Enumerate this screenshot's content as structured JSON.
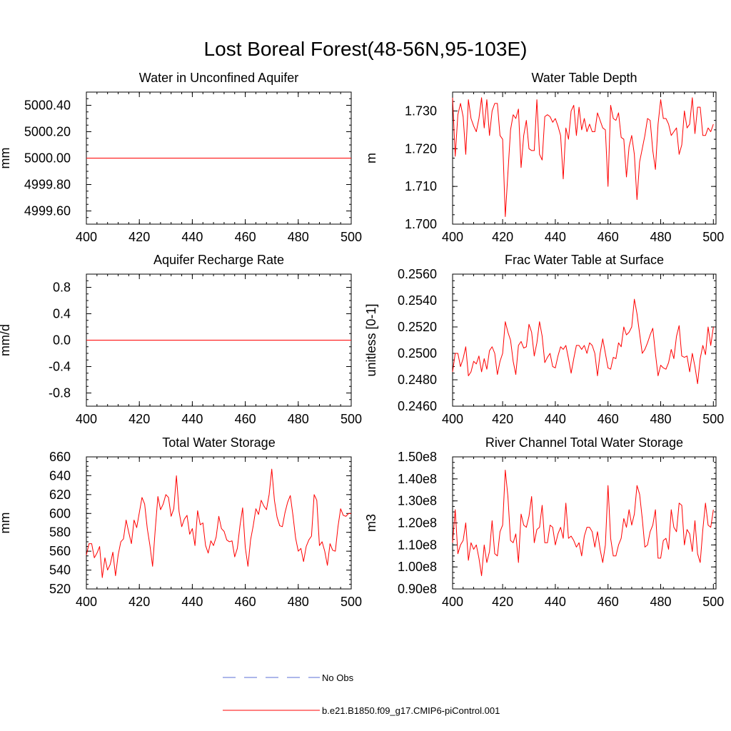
{
  "page_title": "Lost Boreal Forest(48-56N,95-103E)",
  "colors": {
    "series": "#ff0000",
    "obs": "#5b6fd6",
    "axis": "#000000"
  },
  "chart_data": [
    {
      "type": "line",
      "title": "Water in Unconfined Aquifer",
      "xlabel": "",
      "ylabel": "mm",
      "xlim": [
        400,
        500
      ],
      "ylim": [
        4999.5,
        5000.5
      ],
      "xticks": [
        400,
        420,
        440,
        460,
        480,
        500
      ],
      "yticks": [
        4999.6,
        4999.8,
        5000.0,
        5000.2,
        5000.4
      ],
      "ytick_labels": [
        "4999.60",
        "4999.80",
        "5000.00",
        "5000.20",
        "5000.40"
      ],
      "series": [
        {
          "name": "b.e21.B1850.f09_g17.CMIP6-piControl.001",
          "constant": 5000.0
        }
      ]
    },
    {
      "type": "line",
      "title": "Water Table Depth",
      "xlabel": "",
      "ylabel": "m",
      "xlim": [
        401,
        501
      ],
      "ylim": [
        1.7,
        1.735
      ],
      "xticks": [
        400,
        420,
        440,
        460,
        480,
        500
      ],
      "yticks": [
        1.7,
        1.71,
        1.72,
        1.73
      ],
      "ytick_labels": [
        "1.700",
        "1.710",
        "1.720",
        "1.730"
      ],
      "series": [
        {
          "name": "b.e21.B1850.f09_g17.CMIP6-piControl.001",
          "values": [
            1.7335,
            1.718,
            1.729,
            1.732,
            1.7285,
            1.7185,
            1.733,
            1.728,
            1.726,
            1.7245,
            1.728,
            1.7335,
            1.7255,
            1.733,
            1.7235,
            1.73,
            1.732,
            1.732,
            1.7235,
            1.7225,
            1.702,
            1.7135,
            1.725,
            1.729,
            1.728,
            1.7305,
            1.715,
            1.7235,
            1.7275,
            1.72,
            1.7195,
            1.7195,
            1.733,
            1.7185,
            1.717,
            1.7285,
            1.729,
            1.7285,
            1.727,
            1.728,
            1.726,
            1.7235,
            1.712,
            1.7255,
            1.7225,
            1.73,
            1.7315,
            1.7235,
            1.731,
            1.725,
            1.728,
            1.7245,
            1.7265,
            1.7245,
            1.7245,
            1.7295,
            1.7275,
            1.7255,
            1.725,
            1.71,
            1.7315,
            1.728,
            1.7275,
            1.7295,
            1.723,
            1.7225,
            1.7125,
            1.7205,
            1.7235,
            1.7185,
            1.7065,
            1.7165,
            1.72,
            1.7235,
            1.728,
            1.7275,
            1.7195,
            1.7145,
            1.7265,
            1.733,
            1.728,
            1.728,
            1.7265,
            1.7235,
            1.7245,
            1.7255,
            1.7185,
            1.721,
            1.73,
            1.7255,
            1.7265,
            1.7335,
            1.724,
            1.731,
            1.731,
            1.7235,
            1.7235,
            1.7255,
            1.7245,
            1.7265
          ]
        }
      ]
    },
    {
      "type": "line",
      "title": "Aquifer Recharge Rate",
      "xlabel": "",
      "ylabel": "mm/d",
      "xlim": [
        400,
        500
      ],
      "ylim": [
        -1.0,
        1.0
      ],
      "xticks": [
        400,
        420,
        440,
        460,
        480,
        500
      ],
      "yticks": [
        -0.8,
        -0.4,
        0.0,
        0.4,
        0.8
      ],
      "ytick_labels": [
        "-0.8",
        "-0.4",
        "0.0",
        "0.4",
        "0.8"
      ],
      "series": [
        {
          "name": "b.e21.B1850.f09_g17.CMIP6-piControl.001",
          "constant": 0.0
        }
      ]
    },
    {
      "type": "line",
      "title": "Frac Water Table at Surface",
      "xlabel": "",
      "ylabel": "unitless [0-1]",
      "xlim": [
        401,
        501
      ],
      "ylim": [
        0.246,
        0.256
      ],
      "xticks": [
        400,
        420,
        440,
        460,
        480,
        500
      ],
      "yticks": [
        0.246,
        0.248,
        0.25,
        0.252,
        0.254,
        0.256
      ],
      "ytick_labels": [
        "0.2460",
        "0.2480",
        "0.2500",
        "0.2520",
        "0.2540",
        "0.2560"
      ],
      "series": [
        {
          "name": "b.e21.B1850.f09_g17.CMIP6-piControl.001",
          "values": [
            0.2486,
            0.25,
            0.25,
            0.249,
            0.2496,
            0.2505,
            0.2483,
            0.2486,
            0.2494,
            0.2492,
            0.2498,
            0.2486,
            0.2496,
            0.2488,
            0.2502,
            0.2505,
            0.25,
            0.2484,
            0.2494,
            0.25,
            0.2524,
            0.2516,
            0.251,
            0.2494,
            0.2484,
            0.2506,
            0.2509,
            0.2504,
            0.2505,
            0.2522,
            0.2516,
            0.2498,
            0.2508,
            0.2524,
            0.2513,
            0.2493,
            0.2497,
            0.25,
            0.249,
            0.2489,
            0.2498,
            0.2505,
            0.2503,
            0.2506,
            0.2496,
            0.2485,
            0.2496,
            0.2506,
            0.2506,
            0.2503,
            0.2506,
            0.25,
            0.2508,
            0.2506,
            0.25,
            0.2483,
            0.25,
            0.2511,
            0.25,
            0.2489,
            0.2488,
            0.2497,
            0.2496,
            0.2508,
            0.2505,
            0.252,
            0.2514,
            0.2516,
            0.252,
            0.2541,
            0.253,
            0.2515,
            0.25,
            0.2503,
            0.2508,
            0.2514,
            0.2519,
            0.25,
            0.2483,
            0.2491,
            0.2489,
            0.2488,
            0.2493,
            0.2503,
            0.2496,
            0.2513,
            0.2521,
            0.2498,
            0.2497,
            0.2498,
            0.2486,
            0.25,
            0.249,
            0.2477,
            0.2496,
            0.2506,
            0.2499,
            0.252,
            0.2506,
            0.252
          ]
        }
      ]
    },
    {
      "type": "line",
      "title": "Total Water Storage",
      "xlabel": "",
      "ylabel": "mm",
      "xlim": [
        400,
        500
      ],
      "ylim": [
        520,
        660
      ],
      "xticks": [
        400,
        420,
        440,
        460,
        480,
        500
      ],
      "yticks": [
        520,
        540,
        560,
        580,
        600,
        620,
        640,
        660
      ],
      "ytick_labels": [
        "520",
        "540",
        "560",
        "580",
        "600",
        "620",
        "640",
        "660"
      ],
      "series": [
        {
          "name": "b.e21.B1850.f09_g17.CMIP6-piControl.001",
          "values": [
            556,
            568,
            568,
            553,
            558,
            565,
            532,
            553,
            540,
            546,
            559,
            534,
            556,
            570,
            573,
            593,
            580,
            568,
            593,
            585,
            601,
            617,
            610,
            584,
            566,
            544,
            583,
            618,
            604,
            610,
            620,
            617,
            597,
            605,
            640,
            602,
            586,
            594,
            598,
            578,
            584,
            566,
            603,
            588,
            590,
            566,
            558,
            571,
            566,
            575,
            597,
            584,
            581,
            572,
            570,
            571,
            554,
            563,
            587,
            606,
            564,
            544,
            572,
            587,
            605,
            599,
            614,
            608,
            604,
            620,
            647,
            614,
            596,
            587,
            586,
            601,
            612,
            619,
            598,
            574,
            560,
            563,
            549,
            565,
            572,
            576,
            620,
            614,
            566,
            570,
            560,
            545,
            568,
            561,
            560,
            586,
            605,
            598,
            597,
            600,
            600
          ]
        }
      ]
    },
    {
      "type": "line",
      "title": "River Channel Total Water Storage",
      "xlabel": "",
      "ylabel": "m3",
      "xlim": [
        401,
        501
      ],
      "ylim": [
        90000000,
        150000000
      ],
      "xticks": [
        400,
        420,
        440,
        460,
        480,
        500
      ],
      "yticks": [
        90000000,
        100000000,
        110000000,
        120000000,
        130000000,
        140000000,
        150000000
      ],
      "ytick_labels": [
        "0.90e8",
        "1.00e8",
        "1.10e8",
        "1.20e8",
        "1.30e8",
        "1.40e8",
        "1.50e8"
      ],
      "series": [
        {
          "name": "b.e21.B1850.f09_g17.CMIP6-piControl.001",
          "values": [
            111000000,
            126000000,
            106000000,
            110000000,
            112000000,
            120000000,
            103000000,
            111000000,
            108000000,
            110000000,
            104000000,
            96000000,
            110000000,
            102000000,
            107000000,
            121000000,
            106000000,
            105000000,
            116000000,
            119000000,
            144000000,
            132000000,
            112000000,
            111000000,
            115000000,
            102000000,
            124000000,
            119000000,
            118000000,
            123000000,
            132000000,
            111000000,
            117000000,
            118000000,
            128000000,
            111000000,
            111000000,
            119000000,
            118000000,
            110000000,
            115000000,
            118000000,
            113000000,
            129000000,
            113000000,
            114000000,
            112000000,
            109000000,
            111000000,
            105000000,
            114000000,
            118000000,
            118000000,
            116000000,
            109000000,
            116000000,
            108000000,
            102000000,
            110000000,
            137000000,
            113000000,
            105000000,
            105000000,
            110000000,
            113000000,
            122000000,
            118000000,
            126000000,
            119000000,
            124000000,
            137000000,
            133000000,
            122000000,
            109000000,
            110000000,
            116000000,
            119000000,
            126000000,
            104000000,
            104000000,
            112000000,
            113000000,
            108000000,
            126000000,
            118000000,
            116000000,
            129000000,
            128000000,
            110000000,
            117000000,
            115000000,
            107000000,
            121000000,
            106000000,
            102000000,
            117000000,
            129000000,
            119000000,
            118000000,
            126000000
          ]
        }
      ]
    }
  ],
  "legend": {
    "obs_label": "No Obs",
    "model_label": "b.e21.B1850.f09_g17.CMIP6-piControl.001"
  }
}
